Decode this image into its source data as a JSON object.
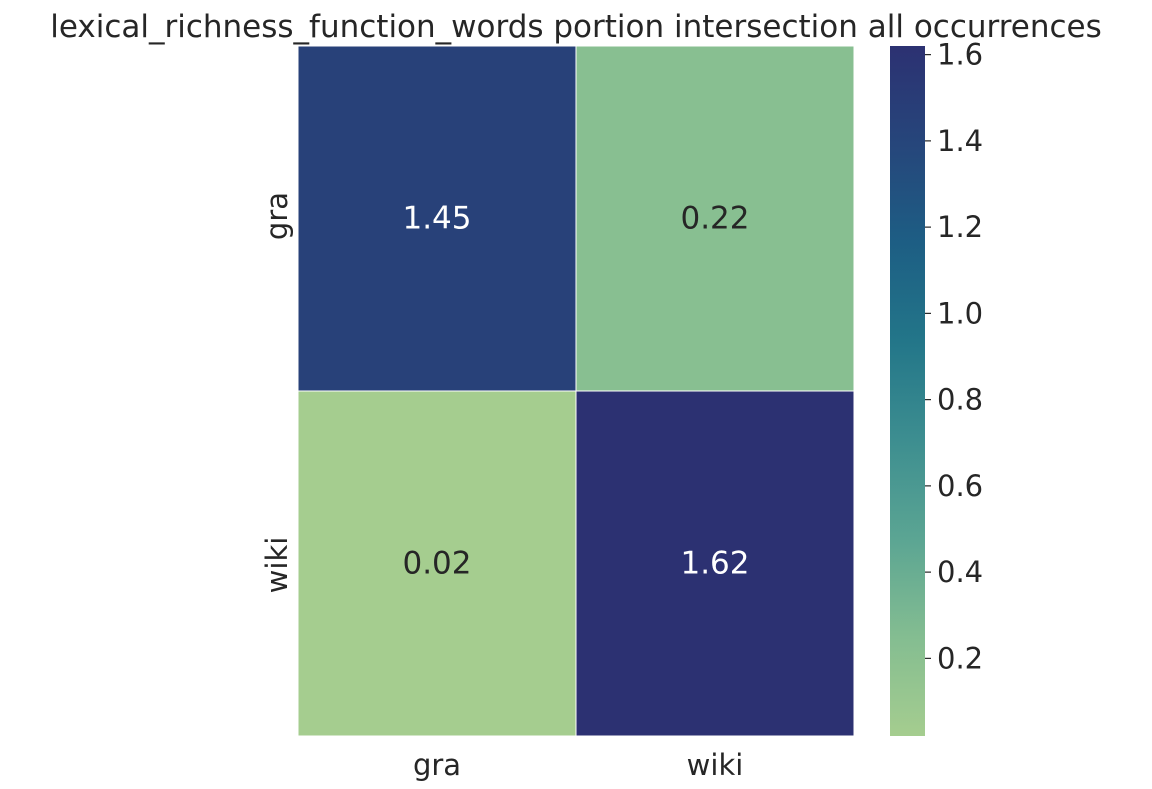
{
  "chart_data": {
    "type": "heatmap",
    "title": "lexical_richness_function_words portion intersection all occurrences",
    "x_labels": [
      "gra",
      "wiki"
    ],
    "y_labels": [
      "gra",
      "wiki"
    ],
    "values": [
      [
        1.45,
        0.22
      ],
      [
        0.02,
        1.62
      ]
    ],
    "colorbar": {
      "min": 0.02,
      "max": 1.62,
      "ticks": [
        0.2,
        0.4,
        0.6,
        0.8,
        1.0,
        1.2,
        1.4,
        1.6
      ],
      "tick_labels": [
        "0.2",
        "0.4",
        "0.6",
        "0.8",
        "1.0",
        "1.2",
        "1.4",
        "1.6"
      ],
      "colors": [
        "#a5cd8f",
        "#84bd91",
        "#5ba593",
        "#3d8e90",
        "#237689",
        "#1d5e84",
        "#26467b",
        "#2c3172"
      ]
    },
    "grid_line_color": "#ffffff",
    "annotation_colors": {
      "dark_cell_text": "#ffffff",
      "light_cell_text": "#262626"
    }
  }
}
